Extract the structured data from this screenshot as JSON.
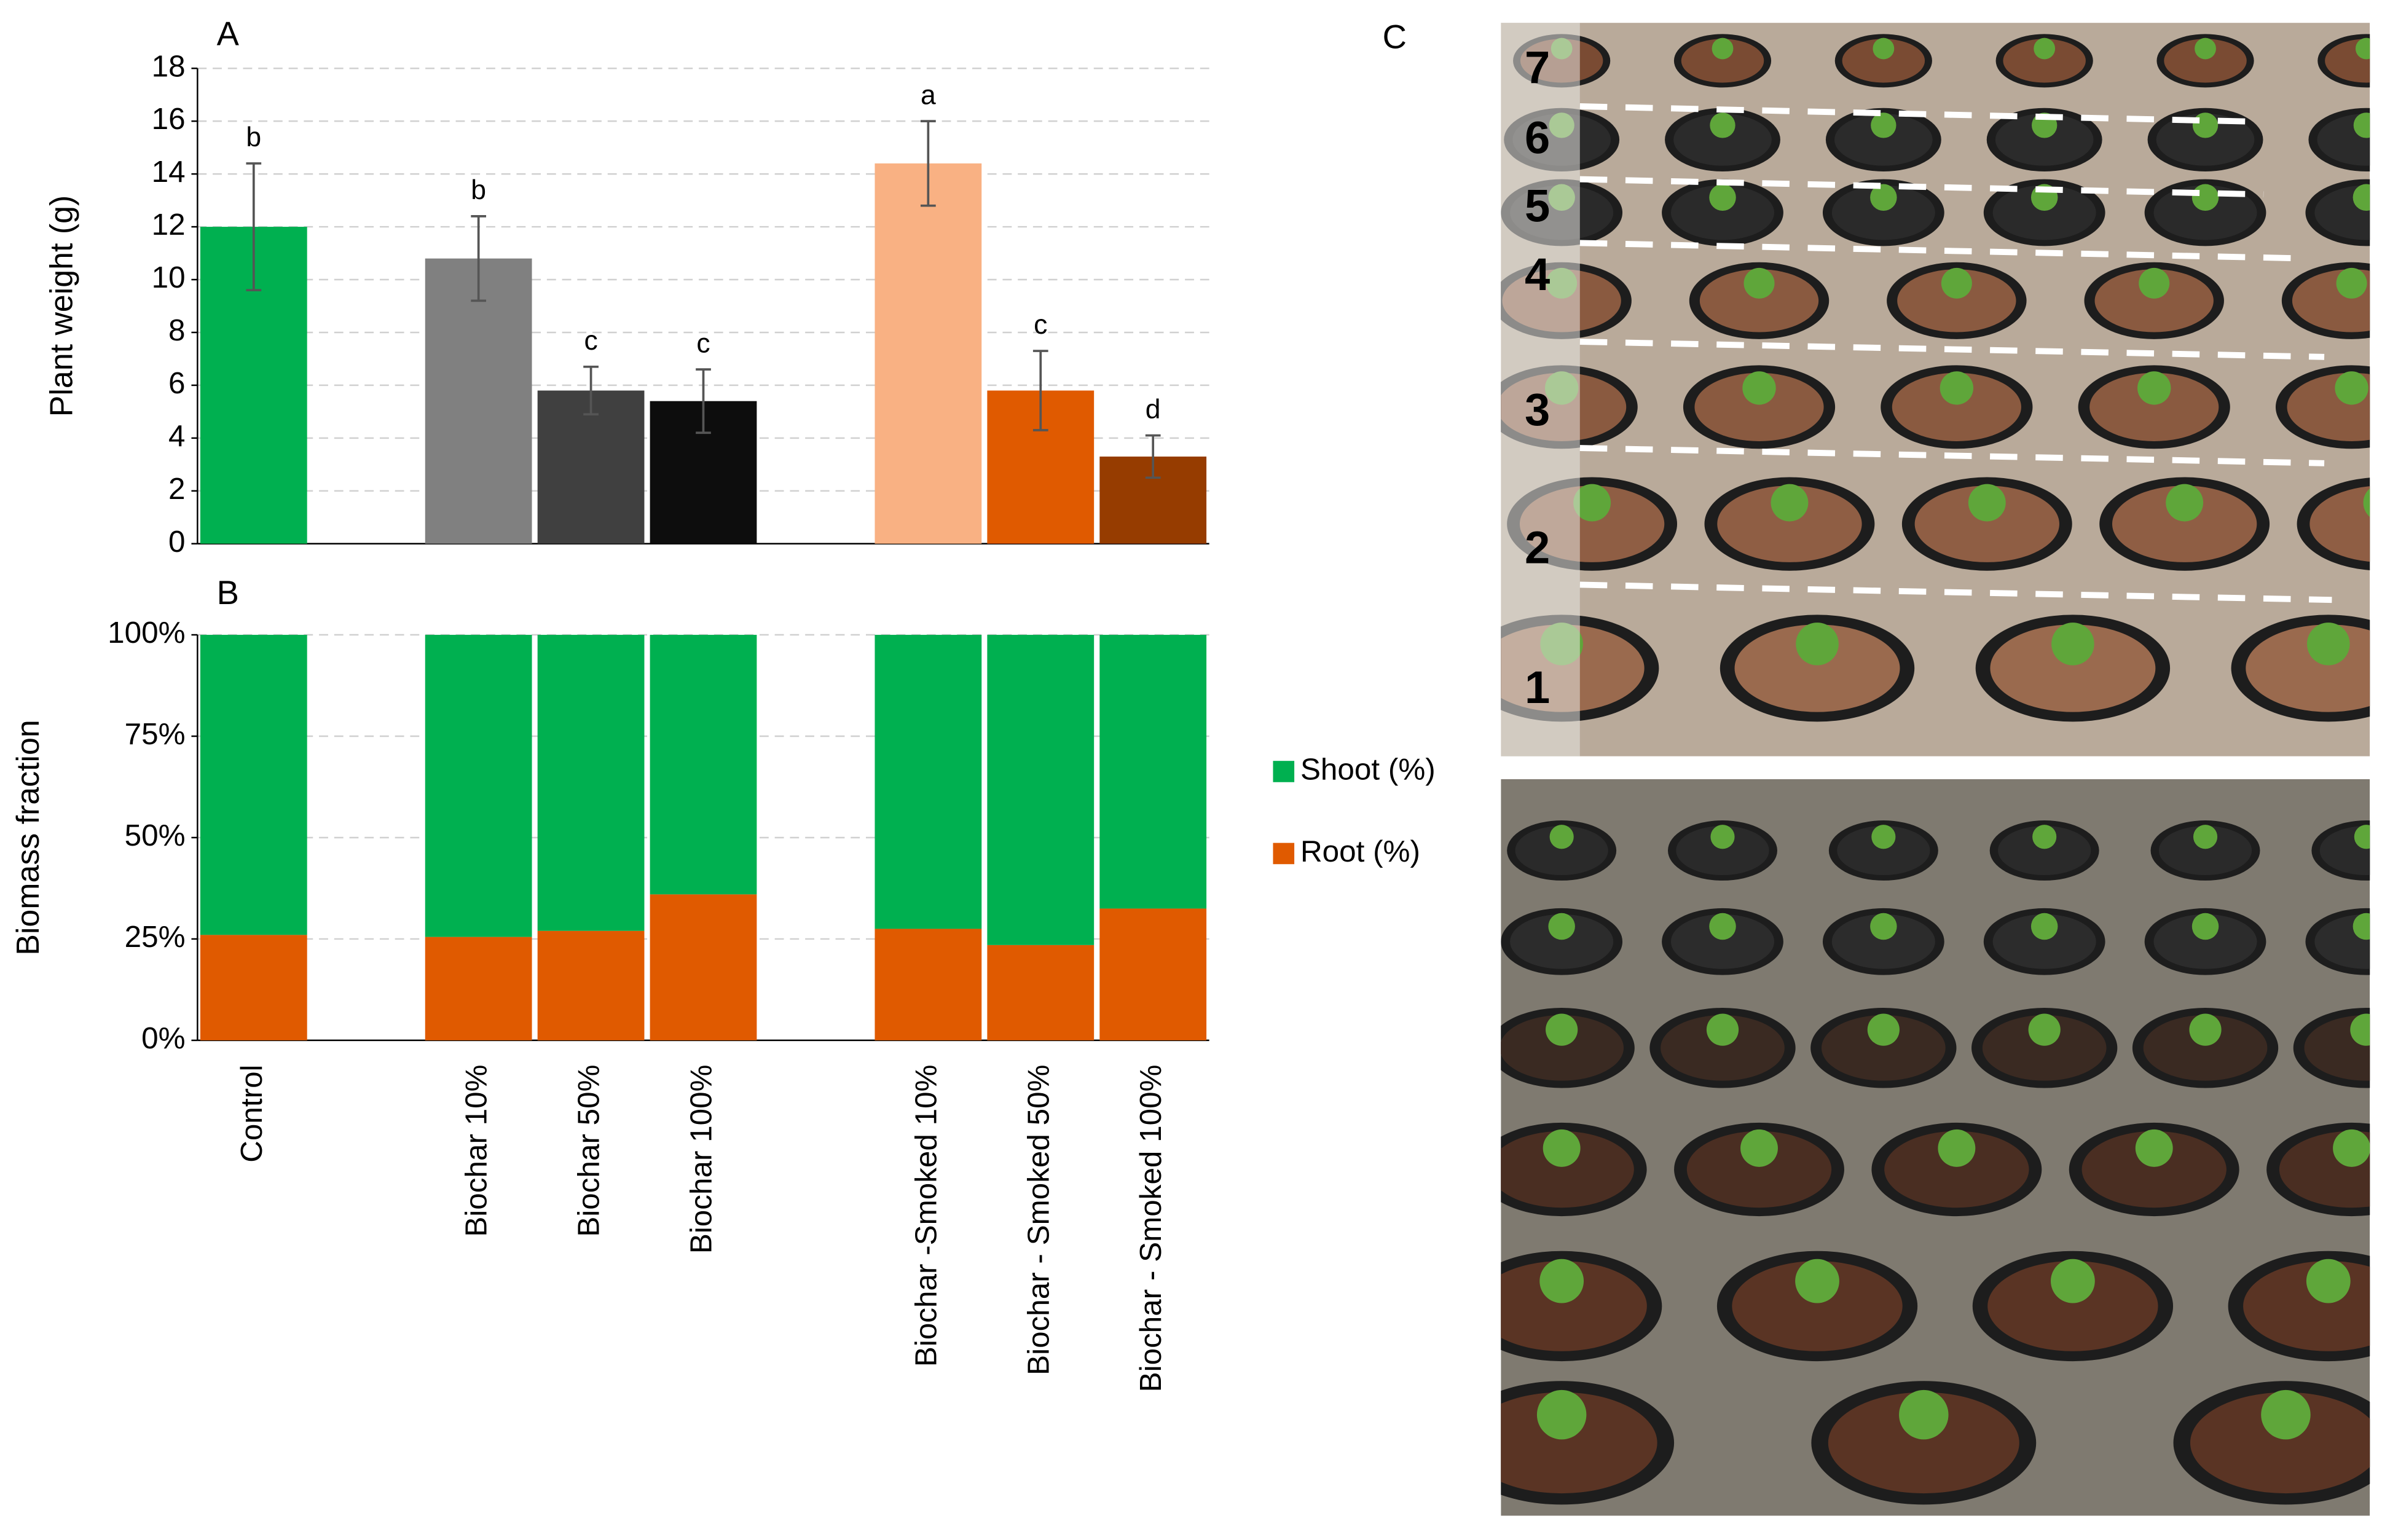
{
  "chart_data": [
    {
      "type": "bar",
      "panel_label": "A",
      "y_label": "Plant weight (g)",
      "values": [
        12.0,
        null,
        10.8,
        5.8,
        5.4,
        null,
        14.4,
        5.8,
        3.3
      ],
      "errors": [
        2.4,
        null,
        1.6,
        0.9,
        1.2,
        null,
        1.6,
        1.5,
        0.8
      ],
      "annotations": [
        "b",
        null,
        "b",
        "c",
        "c",
        null,
        "a",
        "c",
        "d"
      ],
      "colors": [
        "#00b050",
        null,
        "#808080",
        "#404040",
        "#0d0d0d",
        null,
        "#f9b183",
        "#e05a00",
        "#963c00"
      ],
      "ylim": [
        0,
        18
      ],
      "yticks": [
        0,
        2,
        4,
        6,
        8,
        10,
        12,
        14,
        16,
        18
      ],
      "grid": true
    },
    {
      "type": "stacked_bar",
      "panel_label": "B",
      "y_label": "Biomass fraction",
      "categories": [
        "Control",
        null,
        "Biochar 10%",
        "Biochar 50%",
        "Biochar 100%",
        null,
        "Biochar -Smoked 10%",
        "Biochar - Smoked 50%",
        "Biochar - Smoked 100%"
      ],
      "series": [
        {
          "name": "Root (%)",
          "color": "#e05a00",
          "values": [
            26,
            null,
            25.5,
            27,
            36,
            null,
            27.5,
            23.5,
            32.5
          ]
        },
        {
          "name": "Shoot (%)",
          "color": "#00b050",
          "values": [
            74,
            null,
            74.5,
            73,
            64,
            null,
            72.5,
            76.5,
            67.5
          ]
        }
      ],
      "ylim": [
        0,
        100
      ],
      "yticks": [
        {
          "value": 0,
          "label": "0%"
        },
        {
          "value": 25,
          "label": "25%"
        },
        {
          "value": 50,
          "label": "50%"
        },
        {
          "value": 75,
          "label": "75%"
        },
        {
          "value": 100,
          "label": "100%"
        }
      ],
      "grid": true,
      "legend": "right"
    }
  ],
  "photo": {
    "panel_label": "C",
    "row_labels": [
      "1",
      "2",
      "3",
      "4",
      "5",
      "6",
      "7"
    ]
  }
}
